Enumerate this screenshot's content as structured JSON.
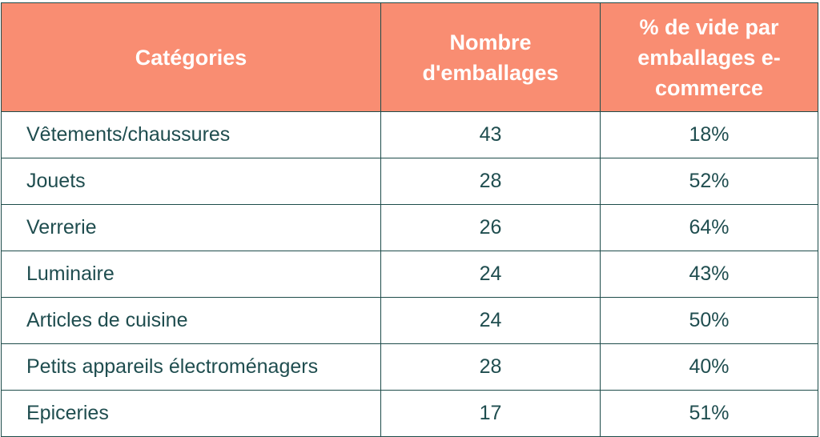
{
  "table": {
    "headers": {
      "category": "Catégories",
      "count": "Nombre d'emballages",
      "empty_pct": "% de vide par emballages e-commerce"
    },
    "header_bg": "#f98d72",
    "text_color": "#1f4d4f",
    "border_color": "#1e4c4a",
    "rows": [
      {
        "category": "Vêtements/chaussures",
        "count": "43",
        "empty_pct": "18%"
      },
      {
        "category": "Jouets",
        "count": "28",
        "empty_pct": "52%"
      },
      {
        "category": "Verrerie",
        "count": "26",
        "empty_pct": "64%"
      },
      {
        "category": "Luminaire",
        "count": "24",
        "empty_pct": "43%"
      },
      {
        "category": "Articles de cuisine",
        "count": "24",
        "empty_pct": "50%"
      },
      {
        "category": "Petits appareils électroménagers",
        "count": "28",
        "empty_pct": "40%"
      },
      {
        "category": "Epiceries",
        "count": "17",
        "empty_pct": "51%"
      }
    ]
  }
}
